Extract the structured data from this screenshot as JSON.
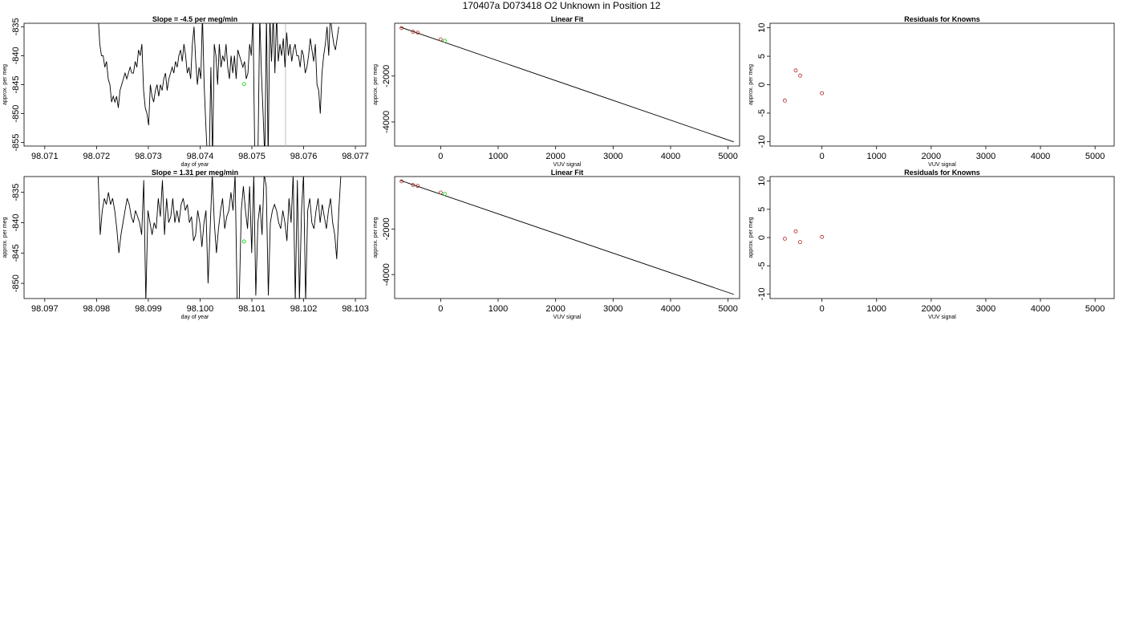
{
  "page": {
    "title": "170407a     D073418   O2 Unknown in Position  12"
  },
  "colors": {
    "line": "#000000",
    "known": "#b22222",
    "unknown": "#00cc00",
    "vline": "#bfbfbf"
  },
  "chart_data": [
    {
      "id": "r1-time",
      "type": "line",
      "title": "Slope =  -4.5  per meg/min",
      "xlabel": "day of year",
      "ylabel": "approx. per meg",
      "xlim": [
        98.0706,
        98.0772
      ],
      "ylim": [
        -855.6,
        -834.4
      ],
      "xticks": [
        "98.071",
        "98.072",
        "98.073",
        "98.074",
        "98.075",
        "98.076",
        "98.077"
      ],
      "yticks": [
        "-835",
        "-840",
        "-845",
        "-850",
        "-855"
      ],
      "vline_x": 98.07565,
      "series": [
        {
          "name": "",
          "x_start": 98.07203,
          "x_end": 98.07668,
          "y": [
            -833,
            -838,
            -840,
            -840,
            -842,
            -841,
            -844,
            -845,
            -848,
            -847,
            -848,
            -847,
            -849,
            -846,
            -845,
            -844,
            -843,
            -844,
            -843,
            -842,
            -843,
            -843,
            -841,
            -842,
            -839,
            -840,
            -838,
            -846,
            -849,
            -850,
            -852,
            -845,
            -847,
            -848,
            -846,
            -845,
            -847,
            -845,
            -846,
            -844,
            -843,
            -846,
            -844,
            -843,
            -842,
            -843,
            -841,
            -842,
            -840,
            -839,
            -841,
            -838,
            -840,
            -843,
            -842,
            -844,
            -838,
            -835,
            -841,
            -845,
            -842,
            -844,
            -833,
            -845,
            -852,
            -858,
            -858,
            -842,
            -858,
            -838,
            -840,
            -845,
            -838,
            -842,
            -840,
            -841,
            -838,
            -842,
            -844,
            -840,
            -843,
            -840,
            -844,
            -839,
            -840,
            -841,
            -842,
            -841,
            -844,
            -843,
            -838,
            -840,
            -833,
            -856,
            -857,
            -856,
            -833,
            -843,
            -850,
            -858,
            -833,
            -858,
            -833,
            -841,
            -833,
            -843,
            -833,
            -841,
            -838,
            -840,
            -837,
            -842,
            -836,
            -840,
            -838,
            -841,
            -839,
            -838,
            -840,
            -840,
            -842,
            -839,
            -840,
            -843,
            -842,
            -840,
            -837,
            -839,
            -841,
            -838,
            -845,
            -846,
            -850,
            -843,
            -840,
            -838,
            -835,
            -840,
            -833,
            -836,
            -838,
            -839,
            -837,
            -835
          ]
        }
      ],
      "points": [
        {
          "x": 98.07485,
          "y": -844.9,
          "color": "unknown"
        }
      ]
    },
    {
      "id": "r1-fit",
      "type": "scatter",
      "title": "Linear Fit",
      "xlabel": "VUV signal",
      "ylabel": "approx. per meg",
      "xlim": [
        -800,
        5200
      ],
      "ylim": [
        -5050,
        300
      ],
      "xticks": [
        0,
        1000,
        2000,
        3000,
        4000,
        5000
      ],
      "yticks": [
        -2000,
        -4000
      ],
      "fit_line": [
        [
          -700,
          130
        ],
        [
          5100,
          -4870
        ]
      ],
      "points": [
        {
          "x": -680,
          "y": 90,
          "color": "known"
        },
        {
          "x": -480,
          "y": -70,
          "color": "known"
        },
        {
          "x": -400,
          "y": -110,
          "color": "known"
        },
        {
          "x": 0,
          "y": -400,
          "color": "known"
        },
        {
          "x": 70,
          "y": -460,
          "color": "unknown"
        }
      ]
    },
    {
      "id": "r1-resid",
      "type": "scatter",
      "title": "Residuals for Knowns",
      "xlabel": "VUV signal",
      "ylabel": "approx. per meg",
      "xlim": [
        -950,
        5350
      ],
      "ylim": [
        -10.8,
        10.8
      ],
      "xticks": [
        0,
        1000,
        2000,
        3000,
        4000,
        5000
      ],
      "yticks": [
        10,
        5,
        0,
        -5,
        -10
      ],
      "points": [
        {
          "x": -680,
          "y": -2.8,
          "color": "known"
        },
        {
          "x": -480,
          "y": 2.5,
          "color": "known"
        },
        {
          "x": -400,
          "y": 1.6,
          "color": "known"
        },
        {
          "x": 0,
          "y": -1.5,
          "color": "known"
        }
      ]
    },
    {
      "id": "r2-time",
      "type": "line",
      "title": "Slope =  1.31  per meg/min",
      "xlabel": "day of year",
      "ylabel": "approx. per meg",
      "xlim": [
        98.0966,
        98.1032
      ],
      "ylim": [
        -852.5,
        -832.4
      ],
      "xticks": [
        "98.097",
        "98.098",
        "98.099",
        "98.100",
        "98.101",
        "98.102",
        "98.103"
      ],
      "yticks": [
        "-835",
        "-840",
        "-845",
        "-850"
      ],
      "series": [
        {
          "name": "",
          "x_start": 98.09803,
          "x_end": 98.10272,
          "y": [
            -832,
            -842,
            -838,
            -836,
            -837,
            -835,
            -837,
            -836,
            -838,
            -841,
            -845,
            -842,
            -840,
            -838,
            -836,
            -837,
            -839,
            -840,
            -838,
            -839,
            -840,
            -842,
            -833,
            -853,
            -838,
            -840,
            -842,
            -840,
            -841,
            -836,
            -839,
            -833,
            -842,
            -836,
            -840,
            -839,
            -836,
            -840,
            -838,
            -840,
            -837,
            -836,
            -838,
            -837,
            -840,
            -839,
            -843,
            -842,
            -838,
            -840,
            -844,
            -840,
            -838,
            -850,
            -841,
            -832,
            -840,
            -845,
            -841,
            -838,
            -836,
            -841,
            -839,
            -838,
            -835,
            -838,
            -832,
            -853,
            -853,
            -838,
            -834,
            -838,
            -841,
            -834,
            -845,
            -832,
            -852,
            -840,
            -837,
            -842,
            -832,
            -834,
            -852,
            -840,
            -838,
            -837,
            -838,
            -840,
            -841,
            -838,
            -840,
            -843,
            -836,
            -840,
            -832,
            -853,
            -833,
            -853,
            -838,
            -832,
            -853,
            -838,
            -836,
            -840,
            -841,
            -838,
            -836,
            -840,
            -837,
            -839,
            -841,
            -838,
            -836,
            -840,
            -842,
            -846,
            -838,
            -832
          ]
        }
      ],
      "points": [
        {
          "x": 98.10085,
          "y": -843.1,
          "color": "unknown"
        }
      ]
    },
    {
      "id": "r2-fit",
      "type": "scatter",
      "title": "Linear Fit",
      "xlabel": "VUV signal",
      "ylabel": "approx. per meg",
      "xlim": [
        -800,
        5200
      ],
      "ylim": [
        -5050,
        300
      ],
      "xticks": [
        0,
        1000,
        2000,
        3000,
        4000,
        5000
      ],
      "yticks": [
        -2000,
        -4000
      ],
      "fit_line": [
        [
          -700,
          130
        ],
        [
          5100,
          -4870
        ]
      ],
      "points": [
        {
          "x": -680,
          "y": 90,
          "color": "known"
        },
        {
          "x": -480,
          "y": -70,
          "color": "known"
        },
        {
          "x": -400,
          "y": -110,
          "color": "known"
        },
        {
          "x": 0,
          "y": -400,
          "color": "known"
        },
        {
          "x": 70,
          "y": -460,
          "color": "unknown"
        }
      ]
    },
    {
      "id": "r2-resid",
      "type": "scatter",
      "title": "Residuals for Knowns",
      "xlabel": "VUV signal",
      "ylabel": "approx. per meg",
      "xlim": [
        -950,
        5350
      ],
      "ylim": [
        -10.8,
        10.8
      ],
      "xticks": [
        0,
        1000,
        2000,
        3000,
        4000,
        5000
      ],
      "yticks": [
        10,
        5,
        0,
        -5,
        -10
      ],
      "points": [
        {
          "x": -680,
          "y": -0.2,
          "color": "known"
        },
        {
          "x": -480,
          "y": 1.1,
          "color": "known"
        },
        {
          "x": -400,
          "y": -0.8,
          "color": "known"
        },
        {
          "x": 0,
          "y": 0.1,
          "color": "known"
        }
      ]
    }
  ]
}
